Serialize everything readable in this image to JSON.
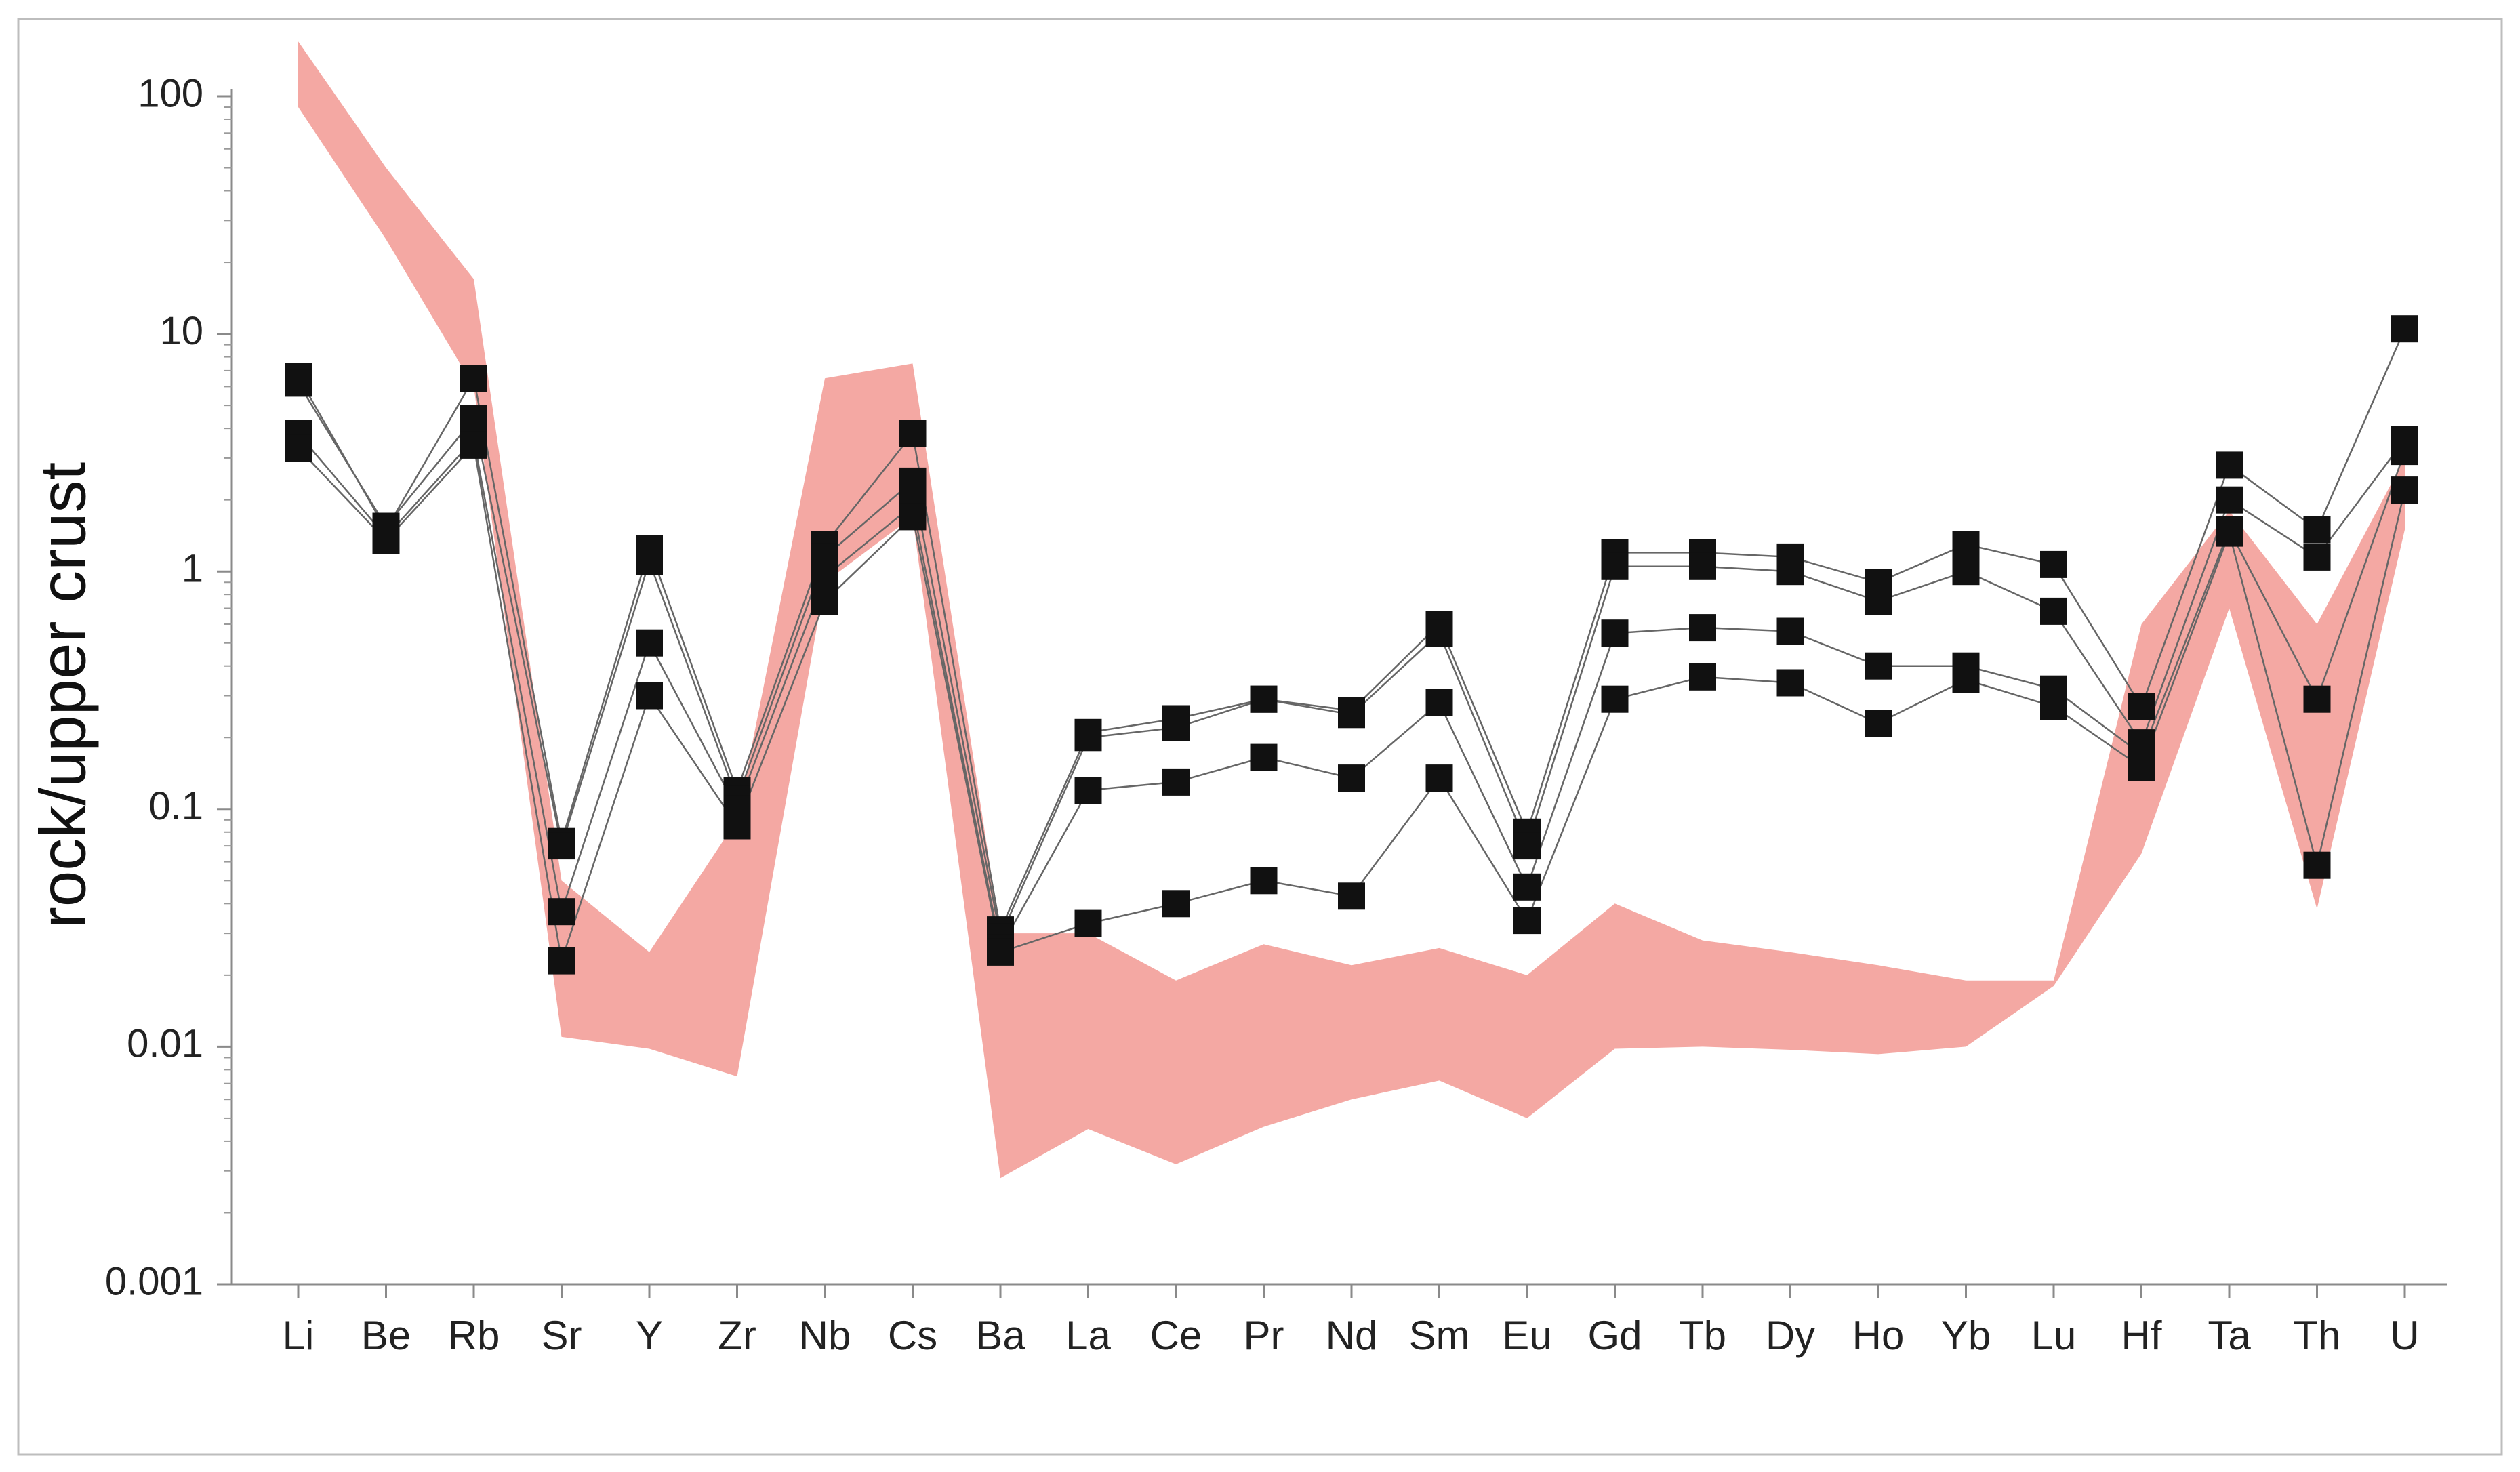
{
  "chart_data": {
    "type": "line",
    "title": "",
    "xlabel": "",
    "ylabel": "rock/upper crust",
    "yscale": "log",
    "ylim": [
      0.001,
      100
    ],
    "y_tick_labels": [
      "100",
      "10",
      "1",
      "0.1",
      "0.01",
      "0.001"
    ],
    "grid": false,
    "legend": "none",
    "categories": [
      "Li",
      "Be",
      "Rb",
      "Sr",
      "Y",
      "Zr",
      "Nb",
      "Cs",
      "Ba",
      "La",
      "Ce",
      "Pr",
      "Nd",
      "Sm",
      "Eu",
      "Gd",
      "Tb",
      "Dy",
      "Ho",
      "Yb",
      "Lu",
      "Hf",
      "Ta",
      "Th",
      "U"
    ],
    "band": {
      "color": "#f4a8a3",
      "upper": [
        170,
        50,
        17,
        0.05,
        0.025,
        0.09,
        6.5,
        7.5,
        0.03,
        0.03,
        0.019,
        0.027,
        0.022,
        0.026,
        0.02,
        0.04,
        0.028,
        0.025,
        0.022,
        0.019,
        0.019,
        0.6,
        1.8,
        0.6,
        3.0
      ],
      "lower": [
        90,
        25,
        6,
        0.011,
        0.0098,
        0.0075,
        0.9,
        1.7,
        0.0028,
        0.0045,
        0.0032,
        0.0046,
        0.006,
        0.0072,
        0.005,
        0.0098,
        0.01,
        0.0097,
        0.0093,
        0.01,
        0.018,
        0.065,
        0.7,
        0.038,
        1.5
      ]
    },
    "series": [
      {
        "values": [
          6.6,
          1.5,
          6.5,
          0.073,
          1.25,
          0.12,
          1.3,
          3.8,
          0.031,
          0.21,
          0.24,
          0.29,
          0.26,
          0.6,
          0.08,
          1.2,
          1.2,
          1.15,
          0.9,
          1.3,
          1.07,
          0.27,
          2.8,
          1.5,
          10.5
        ]
      },
      {
        "values": [
          6.2,
          1.55,
          4.4,
          0.07,
          1.1,
          0.11,
          1.15,
          2.4,
          0.029,
          0.2,
          0.22,
          0.29,
          0.25,
          0.55,
          0.07,
          1.05,
          1.05,
          1.0,
          0.75,
          1.0,
          0.68,
          0.19,
          2.0,
          1.15,
          3.6
        ]
      },
      {
        "values": [
          3.8,
          1.4,
          3.6,
          0.037,
          0.5,
          0.1,
          0.95,
          1.9,
          0.026,
          0.12,
          0.13,
          0.165,
          0.135,
          0.28,
          0.047,
          0.55,
          0.58,
          0.56,
          0.4,
          0.4,
          0.32,
          0.17,
          1.5,
          0.29,
          3.2
        ]
      },
      {
        "values": [
          3.3,
          1.35,
          3.4,
          0.023,
          0.3,
          0.085,
          0.75,
          1.7,
          0.025,
          0.033,
          0.04,
          0.05,
          0.043,
          0.135,
          0.034,
          0.29,
          0.36,
          0.34,
          0.23,
          0.35,
          0.27,
          0.15,
          1.45,
          0.058,
          2.2
        ]
      }
    ],
    "marker_color": "#111111",
    "line_color": "#666666"
  }
}
